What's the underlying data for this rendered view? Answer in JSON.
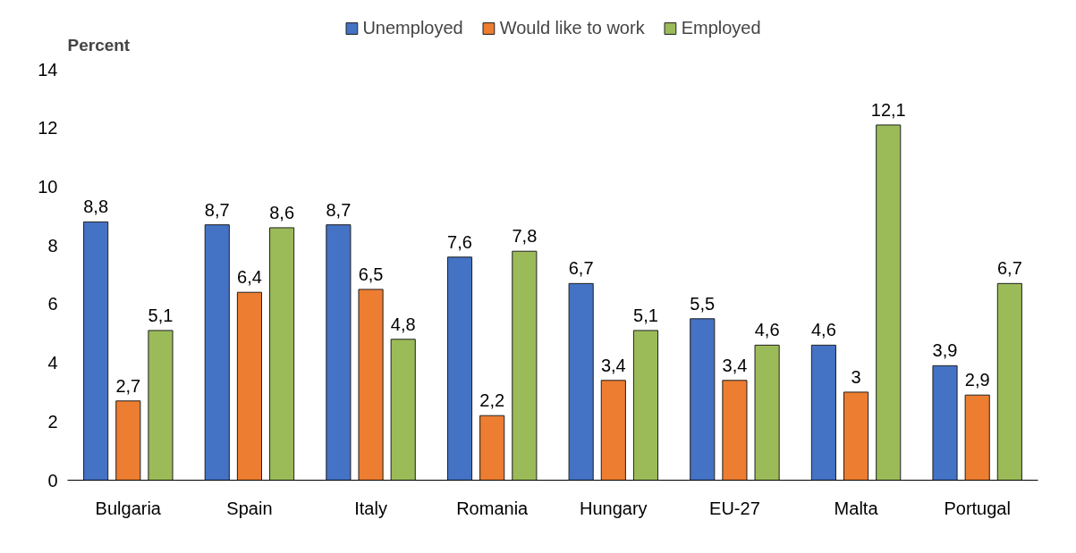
{
  "chart_data": {
    "type": "bar",
    "ylabel": "Percent",
    "categories": [
      "Bulgaria",
      "Spain",
      "Italy",
      "Romania",
      "Hungary",
      "EU-27",
      "Malta",
      "Portugal"
    ],
    "series": [
      {
        "name": "Unemployed",
        "color": "#4472c4",
        "values": [
          8.8,
          8.7,
          8.7,
          7.6,
          6.7,
          5.5,
          4.6,
          3.9
        ],
        "value_labels": [
          "8,8",
          "8,7",
          "8,7",
          "7,6",
          "6,7",
          "5,5",
          "4,6",
          "3,9"
        ]
      },
      {
        "name": "Would like to work",
        "color": "#ed7d31",
        "values": [
          2.7,
          6.4,
          6.5,
          2.2,
          3.4,
          3.4,
          3.0,
          2.9
        ],
        "value_labels": [
          "2,7",
          "6,4",
          "6,5",
          "2,2",
          "3,4",
          "3,4",
          "3",
          "2,9"
        ]
      },
      {
        "name": "Employed",
        "color": "#9bbb59",
        "values": [
          5.1,
          8.6,
          4.8,
          7.8,
          5.1,
          4.6,
          12.1,
          6.7
        ],
        "value_labels": [
          "5,1",
          "8,6",
          "4,8",
          "7,8",
          "5,1",
          "4,6",
          "12,1",
          "6,7"
        ]
      }
    ],
    "ylim": [
      0,
      14
    ],
    "yticks": [
      0,
      2,
      4,
      6,
      8,
      10,
      12,
      14
    ],
    "grid": false,
    "legend": "top"
  }
}
